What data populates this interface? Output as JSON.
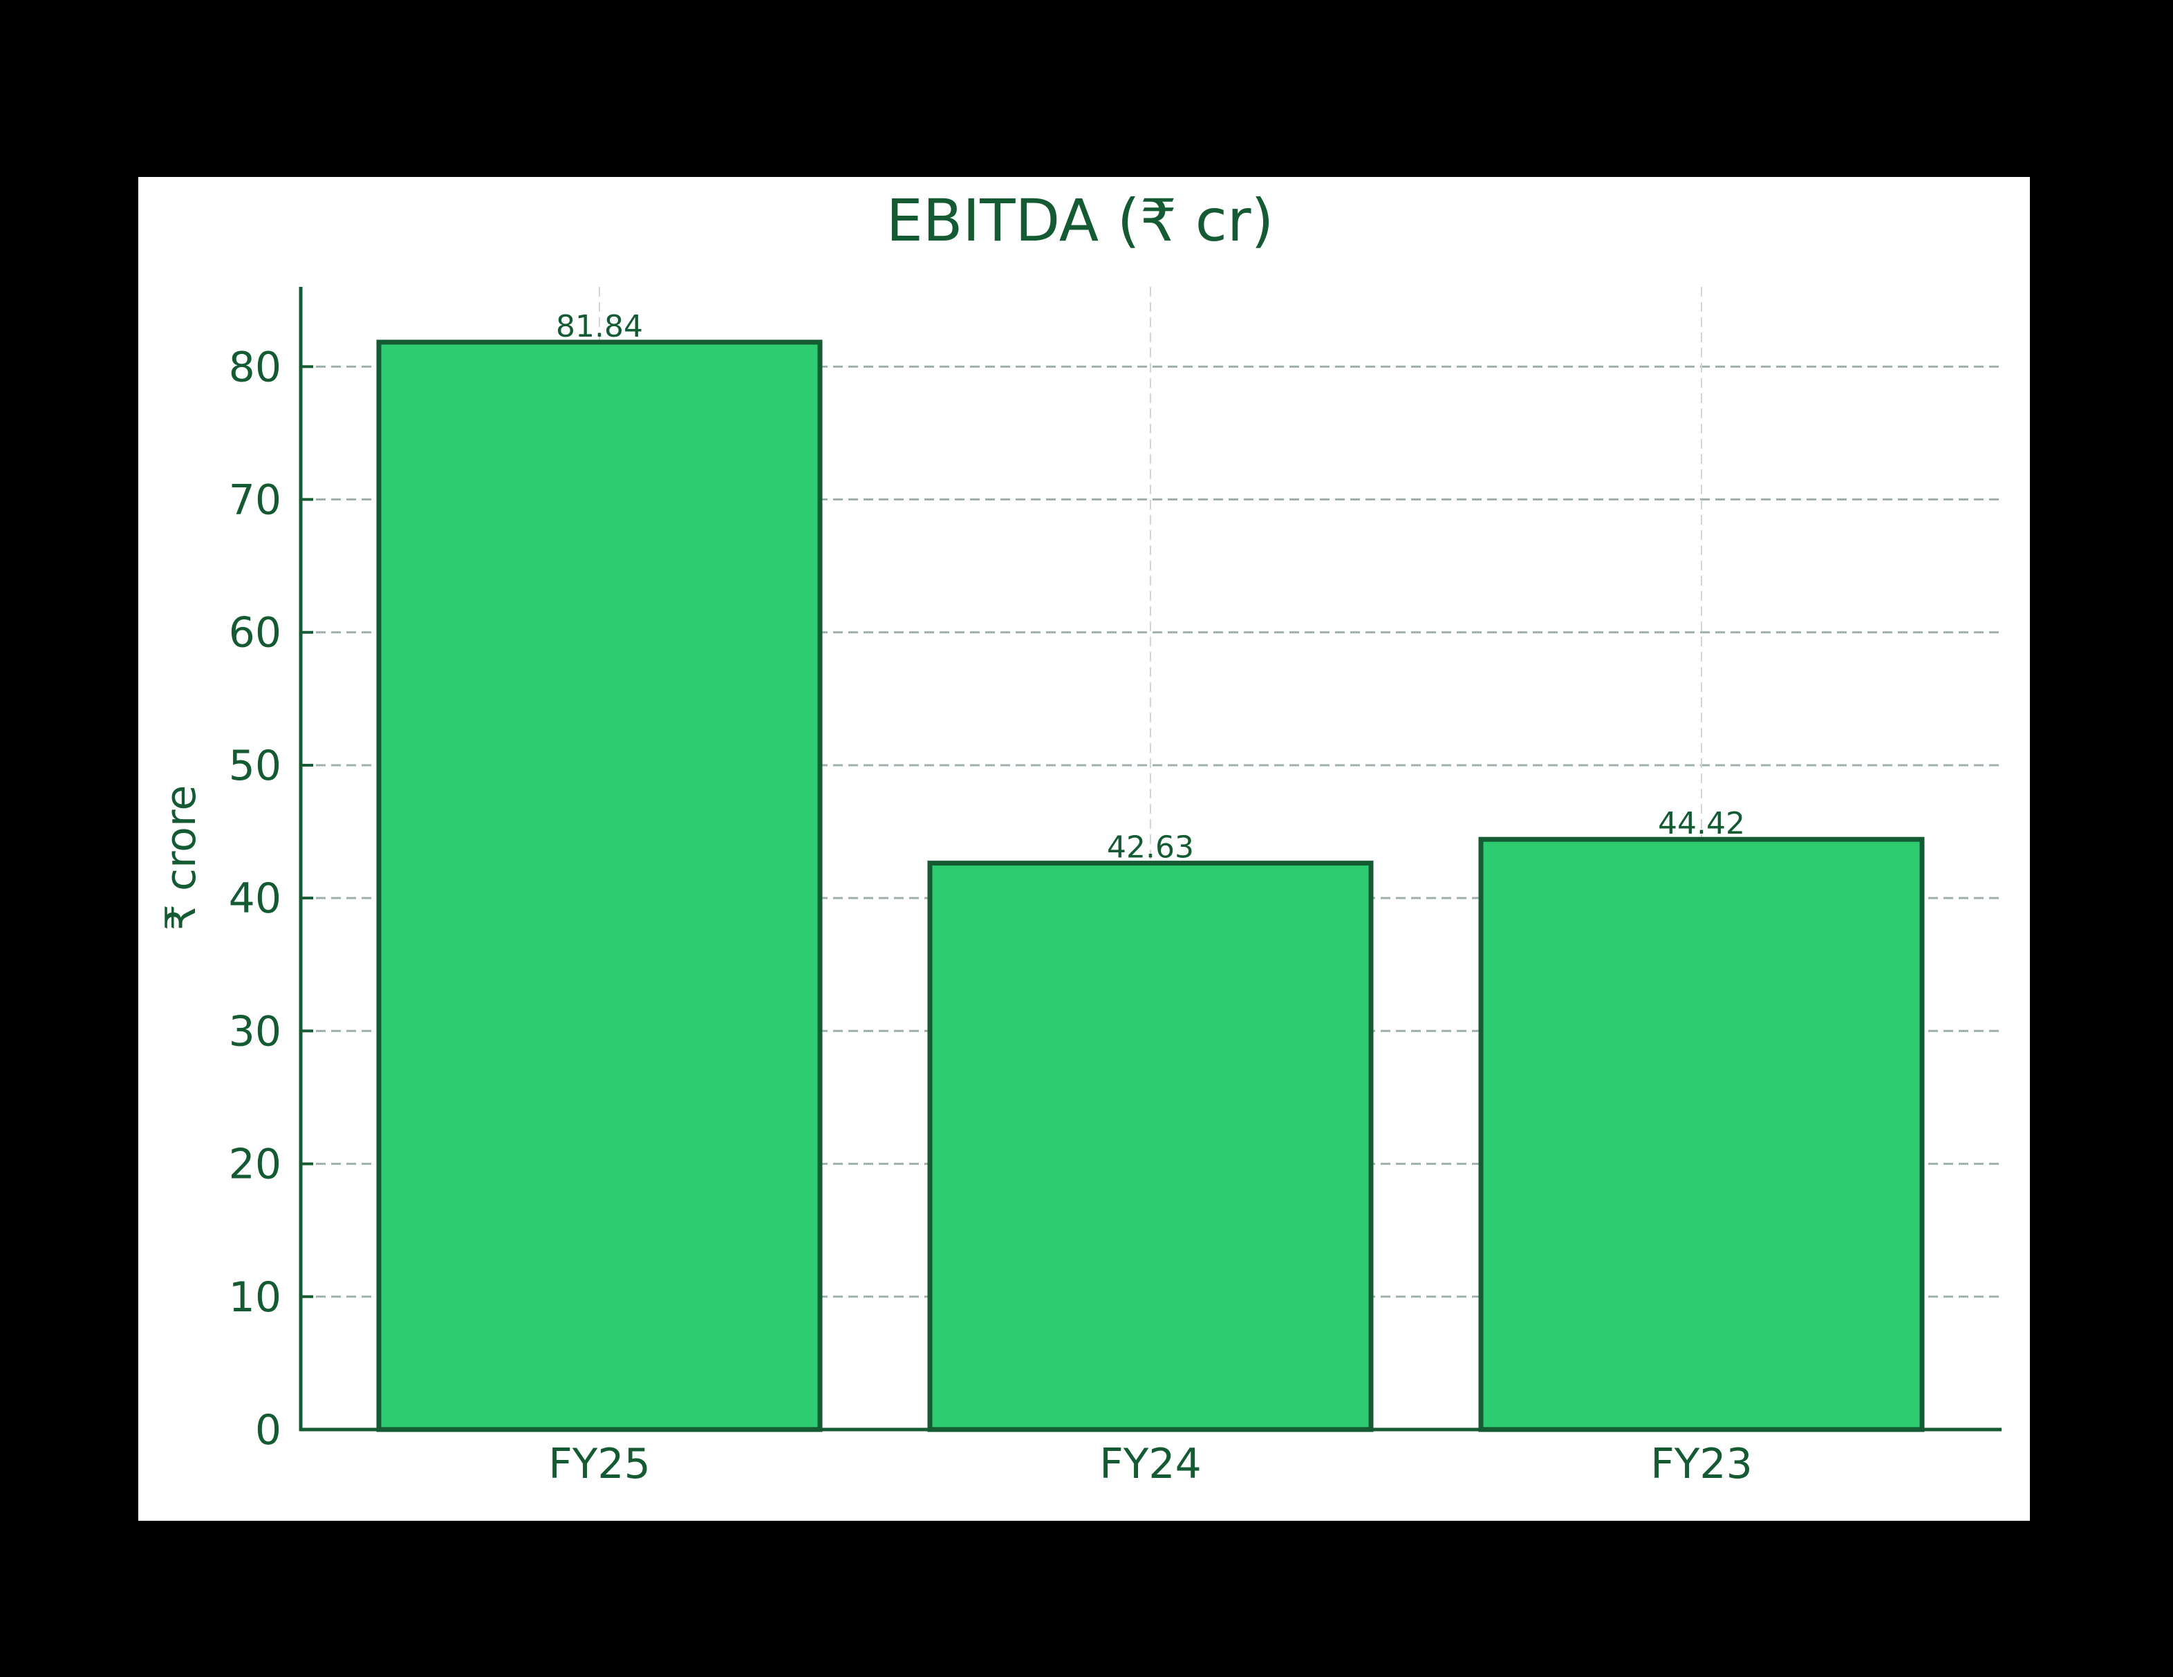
{
  "chart_data": {
    "type": "bar",
    "title": "EBITDA (₹ cr)",
    "xlabel": "",
    "ylabel": "₹ crore",
    "categories": [
      "FY25",
      "FY24",
      "FY23"
    ],
    "values": [
      81.84,
      42.63,
      44.42
    ],
    "value_labels": [
      "81.84",
      "42.63",
      "44.42"
    ],
    "ylim": [
      0,
      86
    ],
    "yticks": [
      0,
      10,
      20,
      30,
      40,
      50,
      60,
      70,
      80
    ],
    "grid": true,
    "legend": null,
    "colors": {
      "bar_fill": "#2ecc71",
      "bar_edge": "#145a32",
      "text": "#145a32",
      "axis": "#145a32",
      "grid": "#9fb0aa",
      "background": "#ffffff",
      "frame": "#000000"
    }
  }
}
